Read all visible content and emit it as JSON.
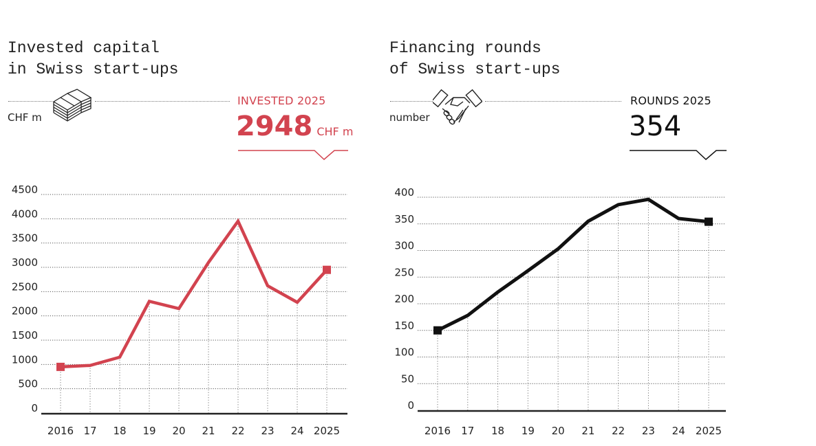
{
  "colors": {
    "accent": "#d2434f",
    "dark": "#111111"
  },
  "left": {
    "title": "Invested capital\nin Swiss start-ups",
    "unit": "CHF m",
    "icon": "money-stack-icon",
    "kpi_label": "INVESTED 2025",
    "kpi_value": "2948",
    "kpi_unit": "CHF m"
  },
  "right": {
    "title": "Financing rounds\nof Swiss start-ups",
    "unit": "number",
    "icon": "handshake-icon",
    "kpi_label": "ROUNDS 2025",
    "kpi_value": "354"
  },
  "chart_data": [
    {
      "type": "line",
      "title": "Invested capital in Swiss start-ups",
      "ylabel": "CHF m",
      "categories": [
        "2016",
        "17",
        "18",
        "19",
        "20",
        "21",
        "22",
        "23",
        "24",
        "2025"
      ],
      "values": [
        950,
        980,
        1150,
        2300,
        2150,
        3100,
        3950,
        2620,
        2280,
        2948
      ],
      "ylim": [
        0,
        4500
      ],
      "yticks": [
        0,
        500,
        1000,
        1500,
        2000,
        2500,
        3000,
        3500,
        4000,
        4500
      ],
      "grid": true,
      "color": "#d2434f"
    },
    {
      "type": "line",
      "title": "Financing rounds of Swiss start-ups",
      "ylabel": "number",
      "categories": [
        "2016",
        "17",
        "18",
        "19",
        "20",
        "21",
        "22",
        "23",
        "24",
        "2025"
      ],
      "values": [
        150,
        178,
        222,
        262,
        303,
        355,
        386,
        396,
        360,
        354
      ],
      "ylim": [
        0,
        400
      ],
      "yticks": [
        0,
        50,
        100,
        150,
        200,
        250,
        300,
        350,
        400
      ],
      "grid": true,
      "color": "#111111"
    }
  ]
}
